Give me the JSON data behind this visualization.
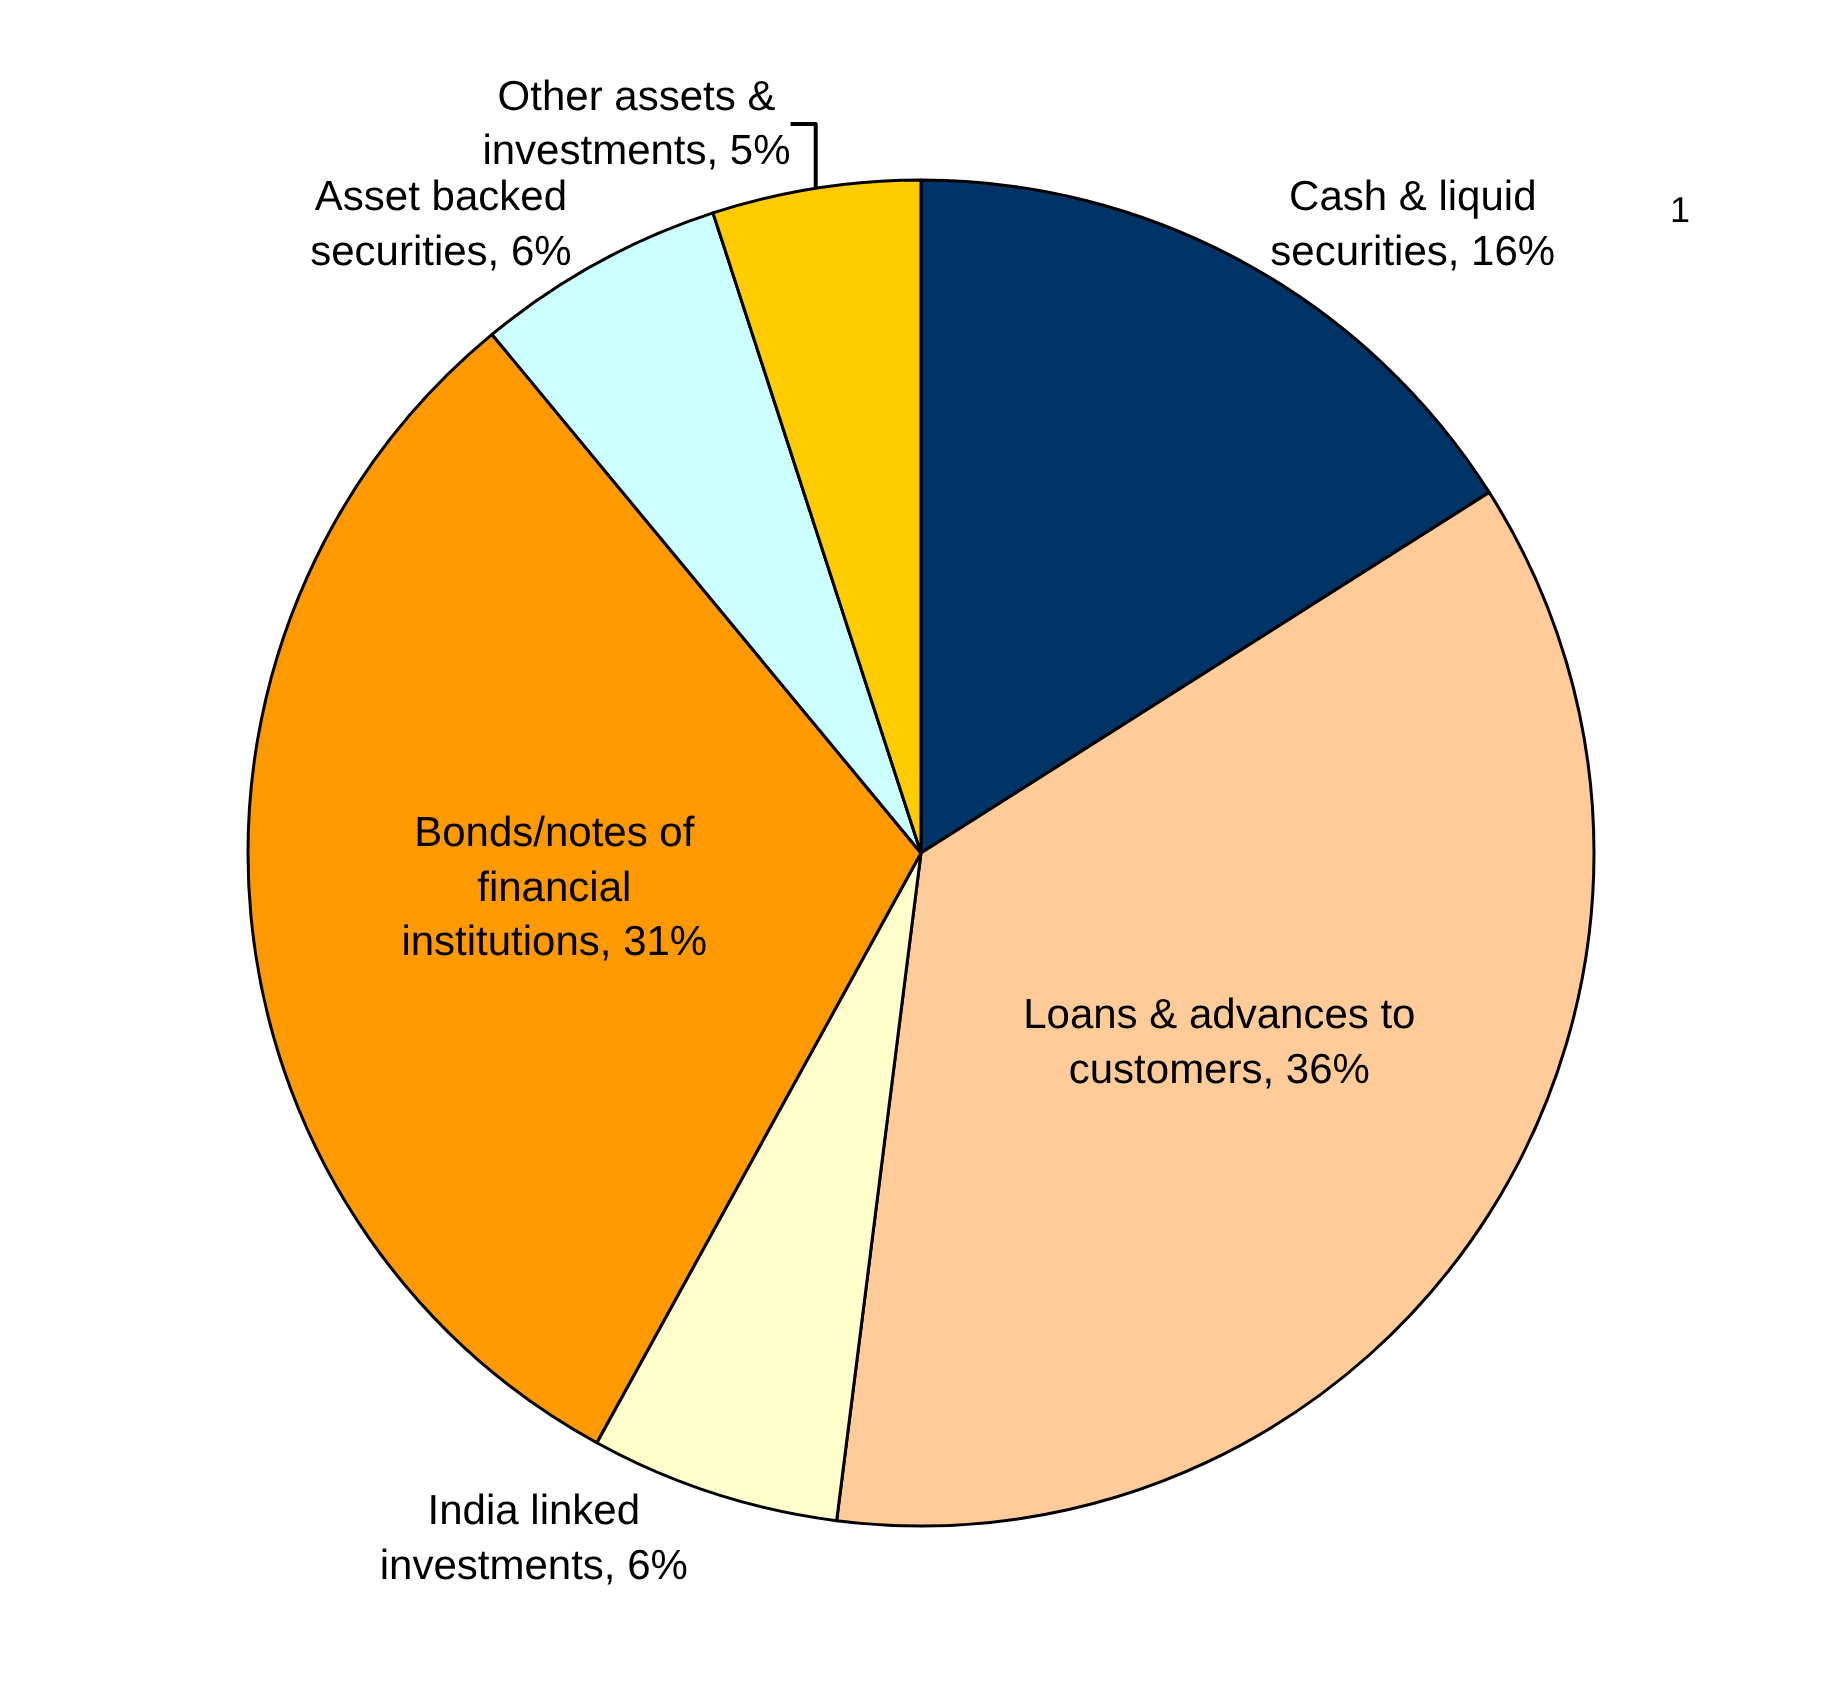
{
  "chart_data": {
    "type": "pie",
    "categories": [
      "Cash & liquid securities",
      "Loans & advances to customers",
      "India linked investments",
      "Bonds/notes of financial institutions",
      "Asset backed securities",
      "Other assets & investments"
    ],
    "values": [
      16,
      36,
      6,
      31,
      6,
      5
    ],
    "value_labels": [
      "16%",
      "36%",
      "6%",
      "31%",
      "6%",
      "5%"
    ],
    "colors": [
      "#003366",
      "#ffcc99",
      "#ffffcc",
      "#ff9900",
      "#ccffff",
      "#ffcc00"
    ],
    "annotations": [
      "1"
    ],
    "legend": false
  }
}
